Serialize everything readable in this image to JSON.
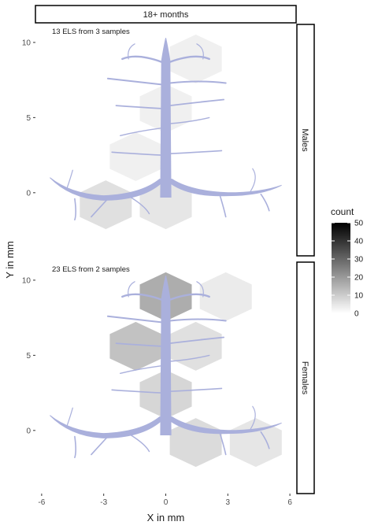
{
  "chart_data": {
    "type": "hexbin",
    "top_strip": "18+ months",
    "xlabel": "X in mm",
    "ylabel": "Y in mm",
    "xlim": [
      -6.3,
      6.3
    ],
    "ylim_per_panel": [
      -4.2,
      11.2
    ],
    "x_ticks": [
      -6,
      -3,
      0,
      3,
      6
    ],
    "y_ticks": [
      0,
      5,
      10
    ],
    "panels": [
      {
        "label": "Males",
        "annotation": "13 ELS from 3 samples",
        "hexes": [
          {
            "x": 1.45,
            "y": 8.9,
            "count": 3
          },
          {
            "x": 0.0,
            "y": 5.6,
            "count": 3
          },
          {
            "x": -1.45,
            "y": 2.4,
            "count": 3
          },
          {
            "x": -2.9,
            "y": -0.8,
            "count": 6
          },
          {
            "x": 0.0,
            "y": -0.8,
            "count": 5
          }
        ]
      },
      {
        "label": "Females",
        "annotation": "23 ELS from 2 samples",
        "hexes": [
          {
            "x": 0.0,
            "y": 8.9,
            "count": 16
          },
          {
            "x": 2.9,
            "y": 8.9,
            "count": 4
          },
          {
            "x": -1.45,
            "y": 5.6,
            "count": 12
          },
          {
            "x": 1.45,
            "y": 5.6,
            "count": 6
          },
          {
            "x": 0.0,
            "y": 2.4,
            "count": 8
          },
          {
            "x": 1.45,
            "y": -0.8,
            "count": 7
          },
          {
            "x": 4.35,
            "y": -0.8,
            "count": 5
          }
        ]
      }
    ],
    "legend": {
      "title": "count",
      "ticks": [
        0,
        10,
        20,
        30,
        40,
        50
      ],
      "range": [
        0,
        50
      ],
      "low_color": "#ffffff",
      "high_color": "#000000"
    },
    "gland_color": "#aab0dc"
  }
}
